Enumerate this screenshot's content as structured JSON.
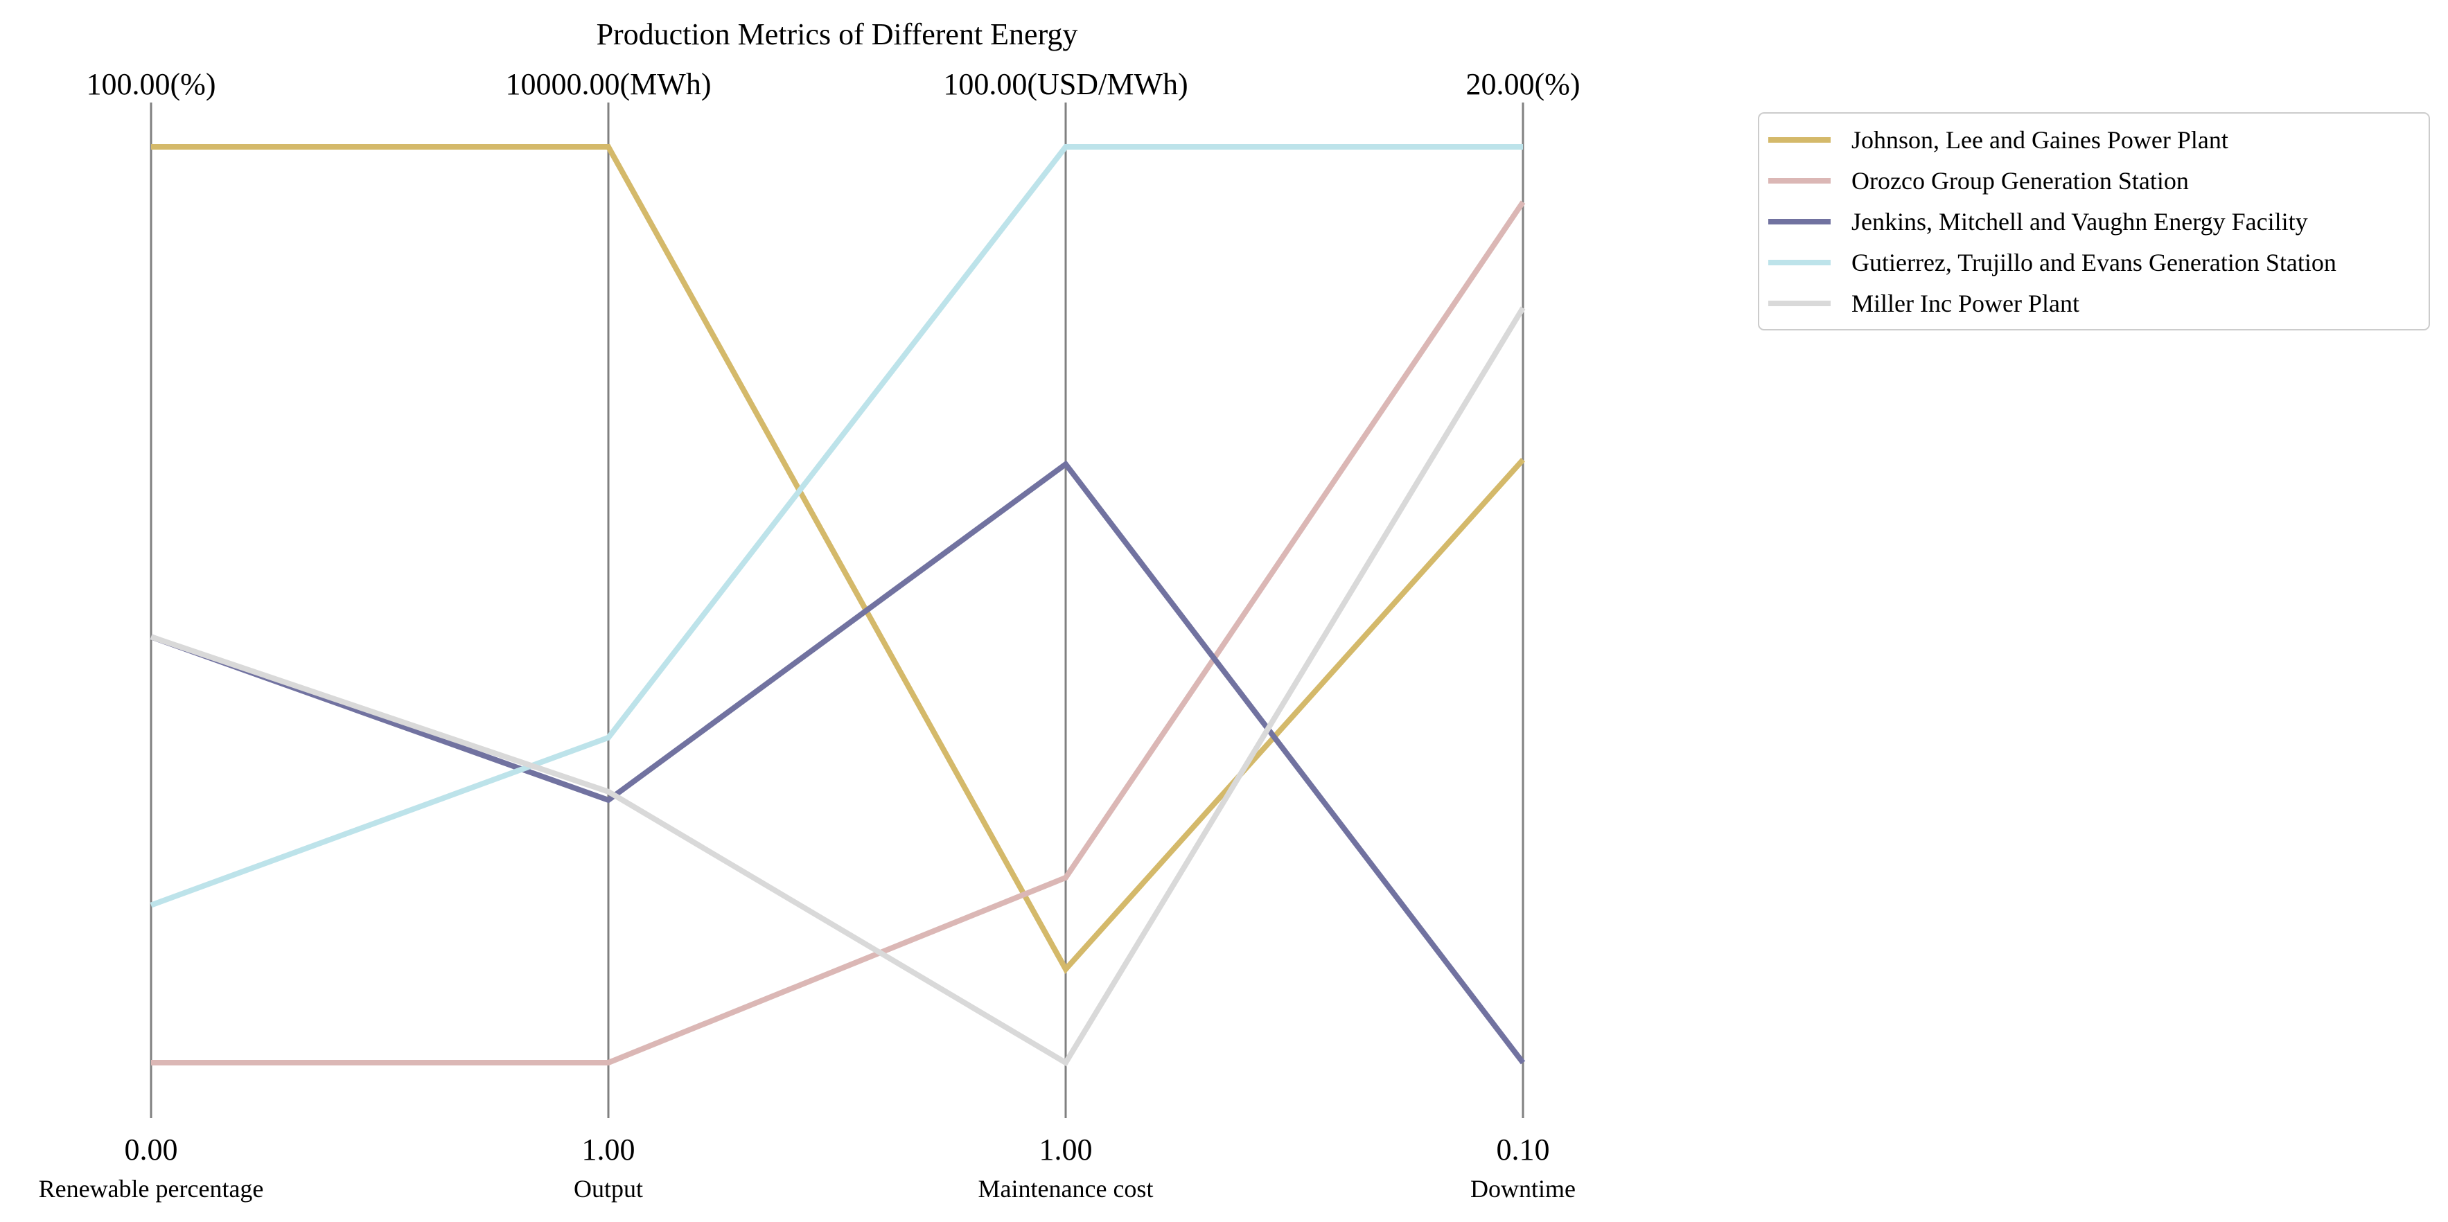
{
  "chart_data": {
    "type": "parallel-coordinates",
    "title": "Production Metrics of Different Energy",
    "axes": [
      {
        "key": "renewable",
        "label": "Renewable percentage",
        "min": 0.0,
        "max": 100.0,
        "min_label": "0.00",
        "max_label": "100.00(%)"
      },
      {
        "key": "output",
        "label": "Output",
        "min": 1.0,
        "max": 10000.0,
        "min_label": "1.00",
        "max_label": "10000.00(MWh)"
      },
      {
        "key": "maintenance",
        "label": "Maintenance cost",
        "min": 1.0,
        "max": 100.0,
        "min_label": "1.00",
        "max_label": "100.00(USD/MWh)"
      },
      {
        "key": "downtime",
        "label": "Downtime",
        "min": 0.1,
        "max": 20.0,
        "min_label": "0.10",
        "max_label": "20.00(%)"
      }
    ],
    "series": [
      {
        "name": "Johnson, Lee and Gaines  Power Plant",
        "color": "#d4b96a",
        "values": [
          100.0,
          10000.0,
          11.1,
          13.2
        ]
      },
      {
        "name": "Orozco Group  Generation Station",
        "color": "#dbb7b5",
        "values": [
          0.0,
          1.0,
          21.0,
          18.8
        ]
      },
      {
        "name": "Jenkins, Mitchell and Vaughn  Energy Facility",
        "color": "#7172a0",
        "values": [
          46.5,
          2868.0,
          65.7,
          0.1
        ]
      },
      {
        "name": "Gutierrez, Trujillo and Evans  Generation Station",
        "color": "#bde3ea",
        "values": [
          17.2,
          3550.0,
          100.0,
          20.0
        ]
      },
      {
        "name": "Miller Inc  Power Plant",
        "color": "#d9d9d9",
        "values": [
          46.5,
          2960.0,
          1.0,
          16.5
        ]
      }
    ],
    "legend_position": "top-right",
    "grid": false
  }
}
